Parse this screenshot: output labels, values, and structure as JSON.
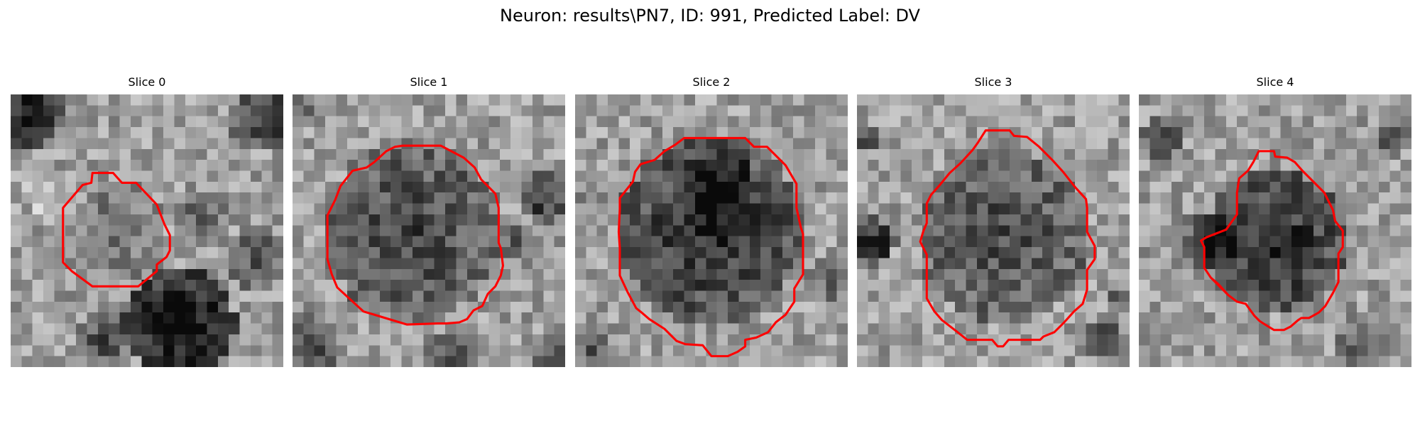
{
  "title": "Neuron: results\\PN7, ID: 991, Predicted Label: DV",
  "colors": {
    "contour": "#ff0000",
    "background": "#ffffff"
  },
  "grid_size": 25,
  "panels": [
    {
      "label": "Slice 0",
      "contour_points": [
        [
          7.5,
          7.2
        ],
        [
          9.4,
          7.2
        ],
        [
          10.2,
          8.1
        ],
        [
          11.5,
          8.1
        ],
        [
          13.4,
          10.1
        ],
        [
          14.1,
          11.9
        ],
        [
          14.6,
          12.9
        ],
        [
          14.6,
          14.3
        ],
        [
          14.3,
          14.9
        ],
        [
          13.4,
          15.6
        ],
        [
          13.4,
          16.2
        ],
        [
          11.7,
          17.6
        ],
        [
          7.5,
          17.6
        ],
        [
          5.6,
          16.2
        ],
        [
          4.8,
          15.4
        ],
        [
          4.8,
          10.4
        ],
        [
          6.6,
          8.3
        ],
        [
          7.4,
          8.1
        ]
      ],
      "shading": [
        {
          "cx": 1.5,
          "cy": 1.5,
          "r": 3.5,
          "dark": 0.55
        },
        {
          "cx": 23.2,
          "cy": 2.2,
          "r": 3.0,
          "dark": 0.45
        },
        {
          "cx": 15.5,
          "cy": 21.0,
          "r": 5.2,
          "dark": 0.65
        },
        {
          "cx": 8.5,
          "cy": 22.5,
          "r": 2.5,
          "dark": 0.35
        },
        {
          "cx": 10.0,
          "cy": 12.5,
          "r": 4.5,
          "dark": 0.18
        },
        {
          "cx": 17.5,
          "cy": 11.0,
          "r": 2.5,
          "dark": 0.25
        },
        {
          "cx": 22.5,
          "cy": 15.0,
          "r": 3.0,
          "dark": 0.3
        },
        {
          "cx": 3.0,
          "cy": 9.0,
          "r": 2.0,
          "dark": -0.2
        }
      ]
    },
    {
      "label": "Slice 1",
      "contour_points": [
        [
          10.1,
          4.7
        ],
        [
          13.6,
          4.7
        ],
        [
          15.7,
          5.8
        ],
        [
          16.7,
          6.7
        ],
        [
          17.3,
          7.8
        ],
        [
          18.0,
          8.5
        ],
        [
          18.6,
          9.1
        ],
        [
          18.9,
          10.4
        ],
        [
          18.9,
          13.6
        ],
        [
          19.1,
          14.1
        ],
        [
          19.3,
          15.7
        ],
        [
          19.1,
          16.6
        ],
        [
          18.6,
          17.6
        ],
        [
          17.9,
          18.3
        ],
        [
          17.4,
          19.4
        ],
        [
          16.6,
          19.8
        ],
        [
          16.0,
          20.6
        ],
        [
          15.3,
          20.9
        ],
        [
          14.1,
          21.0
        ],
        [
          13.3,
          21.0
        ],
        [
          10.5,
          21.1
        ],
        [
          7.5,
          20.2
        ],
        [
          6.5,
          19.9
        ],
        [
          5.3,
          18.8
        ],
        [
          4.1,
          17.7
        ],
        [
          3.6,
          16.5
        ],
        [
          3.2,
          15.1
        ],
        [
          3.2,
          13.9
        ],
        [
          3.2,
          11.1
        ],
        [
          3.9,
          9.7
        ],
        [
          4.4,
          8.4
        ],
        [
          5.5,
          7.0
        ],
        [
          6.8,
          6.7
        ],
        [
          7.5,
          6.2
        ],
        [
          8.6,
          5.2
        ],
        [
          9.4,
          4.8
        ]
      ],
      "shading": [
        {
          "cx": 11.0,
          "cy": 12.5,
          "r": 8.2,
          "dark": 0.38
        },
        {
          "cx": 23.0,
          "cy": 9.5,
          "r": 2.5,
          "dark": 0.45
        },
        {
          "cx": 1.5,
          "cy": 23.0,
          "r": 3.0,
          "dark": 0.35
        },
        {
          "cx": 14.5,
          "cy": 24.0,
          "r": 2.5,
          "dark": 0.35
        },
        {
          "cx": 23.5,
          "cy": 23.5,
          "r": 2.0,
          "dark": 0.3
        },
        {
          "cx": 1.0,
          "cy": 1.0,
          "r": 2.0,
          "dark": 0.15
        },
        {
          "cx": 20.5,
          "cy": 13.5,
          "r": 2.0,
          "dark": 0.25
        }
      ]
    },
    {
      "label": "Slice 2",
      "contour_points": [
        [
          10.0,
          4.0
        ],
        [
          15.6,
          4.0
        ],
        [
          16.4,
          4.8
        ],
        [
          17.6,
          4.8
        ],
        [
          19.3,
          6.5
        ],
        [
          20.3,
          8.2
        ],
        [
          20.3,
          9.2
        ],
        [
          20.3,
          10.4
        ],
        [
          20.7,
          12.2
        ],
        [
          20.9,
          12.8
        ],
        [
          20.9,
          16.5
        ],
        [
          20.1,
          17.8
        ],
        [
          20.1,
          19.0
        ],
        [
          19.3,
          20.2
        ],
        [
          18.4,
          20.9
        ],
        [
          17.7,
          21.8
        ],
        [
          16.6,
          22.3
        ],
        [
          15.6,
          22.5
        ],
        [
          15.6,
          23.1
        ],
        [
          14.9,
          23.6
        ],
        [
          14.0,
          24.0
        ],
        [
          12.5,
          24.0
        ],
        [
          11.7,
          23.0
        ],
        [
          10.1,
          22.9
        ],
        [
          9.3,
          22.6
        ],
        [
          8.2,
          21.5
        ],
        [
          6.8,
          20.6
        ],
        [
          6.1,
          20.0
        ],
        [
          5.6,
          19.6
        ],
        [
          4.8,
          18.1
        ],
        [
          4.1,
          16.6
        ],
        [
          4.1,
          16.5
        ],
        [
          4.1,
          14.1
        ],
        [
          4.0,
          12.6
        ],
        [
          4.1,
          10.5
        ],
        [
          4.1,
          9.5
        ],
        [
          5.3,
          8.0
        ],
        [
          5.5,
          7.1
        ],
        [
          6.0,
          6.4
        ],
        [
          7.3,
          6.0
        ],
        [
          8.2,
          5.2
        ],
        [
          9.2,
          4.6
        ]
      ],
      "shading": [
        {
          "cx": 12.5,
          "cy": 12.5,
          "r": 8.6,
          "dark": 0.48
        },
        {
          "cx": 13.0,
          "cy": 8.5,
          "r": 3.5,
          "dark": 0.2
        },
        {
          "cx": 23.5,
          "cy": 16.5,
          "r": 2.2,
          "dark": 0.3
        },
        {
          "cx": 1.5,
          "cy": 23.5,
          "r": 1.5,
          "dark": 0.3
        },
        {
          "cx": 2.0,
          "cy": 9.0,
          "r": 2.0,
          "dark": 0.15
        }
      ]
    },
    {
      "label": "Slice 3",
      "contour_points": [
        [
          11.8,
          3.3
        ],
        [
          14.0,
          3.3
        ],
        [
          14.4,
          3.8
        ],
        [
          15.6,
          3.9
        ],
        [
          16.7,
          4.8
        ],
        [
          17.9,
          6.0
        ],
        [
          18.9,
          7.1
        ],
        [
          20.0,
          8.5
        ],
        [
          21.0,
          9.6
        ],
        [
          21.1,
          10.4
        ],
        [
          21.1,
          12.6
        ],
        [
          21.8,
          13.9
        ],
        [
          21.8,
          15.1
        ],
        [
          21.1,
          16.1
        ],
        [
          21.1,
          17.9
        ],
        [
          20.7,
          19.2
        ],
        [
          19.9,
          19.9
        ],
        [
          19.0,
          20.9
        ],
        [
          18.1,
          21.8
        ],
        [
          17.1,
          22.2
        ],
        [
          16.8,
          22.5
        ],
        [
          15.0,
          22.5
        ],
        [
          13.9,
          22.5
        ],
        [
          13.4,
          23.1
        ],
        [
          12.9,
          23.1
        ],
        [
          12.4,
          22.5
        ],
        [
          10.1,
          22.5
        ],
        [
          9.1,
          21.7
        ],
        [
          7.8,
          20.7
        ],
        [
          7.1,
          19.9
        ],
        [
          6.4,
          18.7
        ],
        [
          6.4,
          16.5
        ],
        [
          6.4,
          14.7
        ],
        [
          5.8,
          13.5
        ],
        [
          6.1,
          12.5
        ],
        [
          6.4,
          11.8
        ],
        [
          6.4,
          10.0
        ],
        [
          6.8,
          9.2
        ],
        [
          7.6,
          8.3
        ],
        [
          8.5,
          7.2
        ],
        [
          9.5,
          6.3
        ],
        [
          10.6,
          5.1
        ],
        [
          11.1,
          4.4
        ]
      ],
      "shading": [
        {
          "cx": 13.5,
          "cy": 13.0,
          "r": 8.0,
          "dark": 0.35
        },
        {
          "cx": 1.5,
          "cy": 13.5,
          "r": 2.2,
          "dark": 0.55
        },
        {
          "cx": 22.5,
          "cy": 22.5,
          "r": 2.0,
          "dark": 0.35
        },
        {
          "cx": 1.0,
          "cy": 4.0,
          "r": 1.5,
          "dark": 0.3
        },
        {
          "cx": 24.0,
          "cy": 19.0,
          "r": 1.5,
          "dark": 0.25
        }
      ]
    },
    {
      "label": "Slice 4",
      "contour_points": [
        [
          11.0,
          5.2
        ],
        [
          12.4,
          5.2
        ],
        [
          12.5,
          5.7
        ],
        [
          13.6,
          5.8
        ],
        [
          14.3,
          6.2
        ],
        [
          15.0,
          7.0
        ],
        [
          16.0,
          8.0
        ],
        [
          17.0,
          9.0
        ],
        [
          17.8,
          10.6
        ],
        [
          18.0,
          11.6
        ],
        [
          18.7,
          12.5
        ],
        [
          18.7,
          14.0
        ],
        [
          18.3,
          14.6
        ],
        [
          18.3,
          17.2
        ],
        [
          17.8,
          18.2
        ],
        [
          17.1,
          19.4
        ],
        [
          16.5,
          20.0
        ],
        [
          15.6,
          20.5
        ],
        [
          14.9,
          20.5
        ],
        [
          14.6,
          20.7
        ],
        [
          13.9,
          21.3
        ],
        [
          13.3,
          21.6
        ],
        [
          12.4,
          21.6
        ],
        [
          11.9,
          21.3
        ],
        [
          11.1,
          20.8
        ],
        [
          10.6,
          20.3
        ],
        [
          9.8,
          19.2
        ],
        [
          9.0,
          19.0
        ],
        [
          8.2,
          18.4
        ],
        [
          7.3,
          17.4
        ],
        [
          6.6,
          16.8
        ],
        [
          8.2,
          18.4
        ],
        [
          6.6,
          16.8
        ],
        [
          6.0,
          15.9
        ],
        [
          6.0,
          14.0
        ],
        [
          5.7,
          13.4
        ],
        [
          6.2,
          13.1
        ],
        [
          8.0,
          12.4
        ],
        [
          9.0,
          11.0
        ],
        [
          9.0,
          9.0
        ],
        [
          9.2,
          7.7
        ],
        [
          10.0,
          7.0
        ],
        [
          10.5,
          6.2
        ]
      ],
      "shading": [
        {
          "cx": 12.5,
          "cy": 13.5,
          "r": 6.5,
          "dark": 0.5
        },
        {
          "cx": 6.0,
          "cy": 13.5,
          "r": 3.0,
          "dark": 0.35
        },
        {
          "cx": 2.0,
          "cy": 4.0,
          "r": 1.8,
          "dark": 0.35
        },
        {
          "cx": 23.0,
          "cy": 4.0,
          "r": 1.8,
          "dark": 0.25
        },
        {
          "cx": 20.5,
          "cy": 22.5,
          "r": 2.5,
          "dark": 0.25
        }
      ]
    }
  ]
}
